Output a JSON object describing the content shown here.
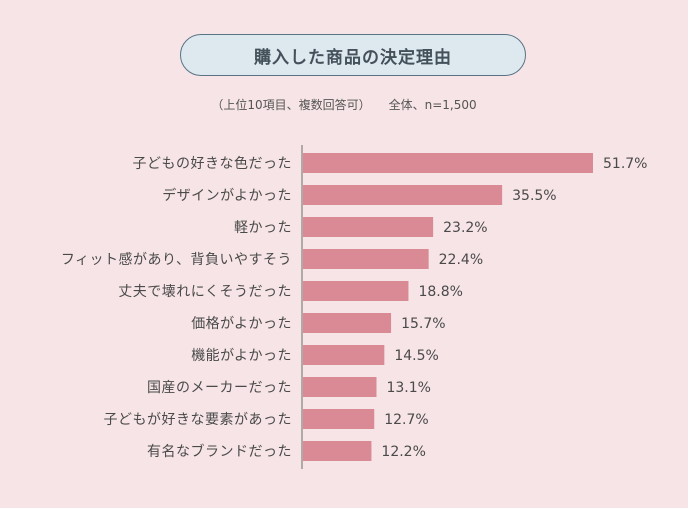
{
  "title": "購入した商品の決定理由",
  "subtitle_note": "（上位10項目、複数回答可）",
  "subtitle_sample": "全体、n=1,500",
  "colors": {
    "background": "#f7e4e6",
    "bar": "#d98a94",
    "axis": "#6b6b6b",
    "title_fill": "#dde9ef",
    "title_border": "#5a7384"
  },
  "chart_data": {
    "type": "bar",
    "orientation": "horizontal",
    "title": "購入した商品の決定理由",
    "categories": [
      "子どもの好きな色だった",
      "デザインがよかった",
      "軽かった",
      "フィット感があり、背負いやすそう",
      "丈夫で壊れにくそうだった",
      "価格がよかった",
      "機能がよかった",
      "国産のメーカーだった",
      "子どもが好きな要素があった",
      "有名なブランドだった"
    ],
    "values": [
      51.7,
      35.5,
      23.2,
      22.4,
      18.8,
      15.7,
      14.5,
      13.1,
      12.7,
      12.2
    ],
    "value_labels": [
      "51.7%",
      "35.5%",
      "23.2%",
      "22.4%",
      "18.8%",
      "15.7%",
      "14.5%",
      "13.1%",
      "12.7%",
      "12.2%"
    ],
    "unit": "%",
    "xlim": [
      0,
      51.7
    ]
  }
}
